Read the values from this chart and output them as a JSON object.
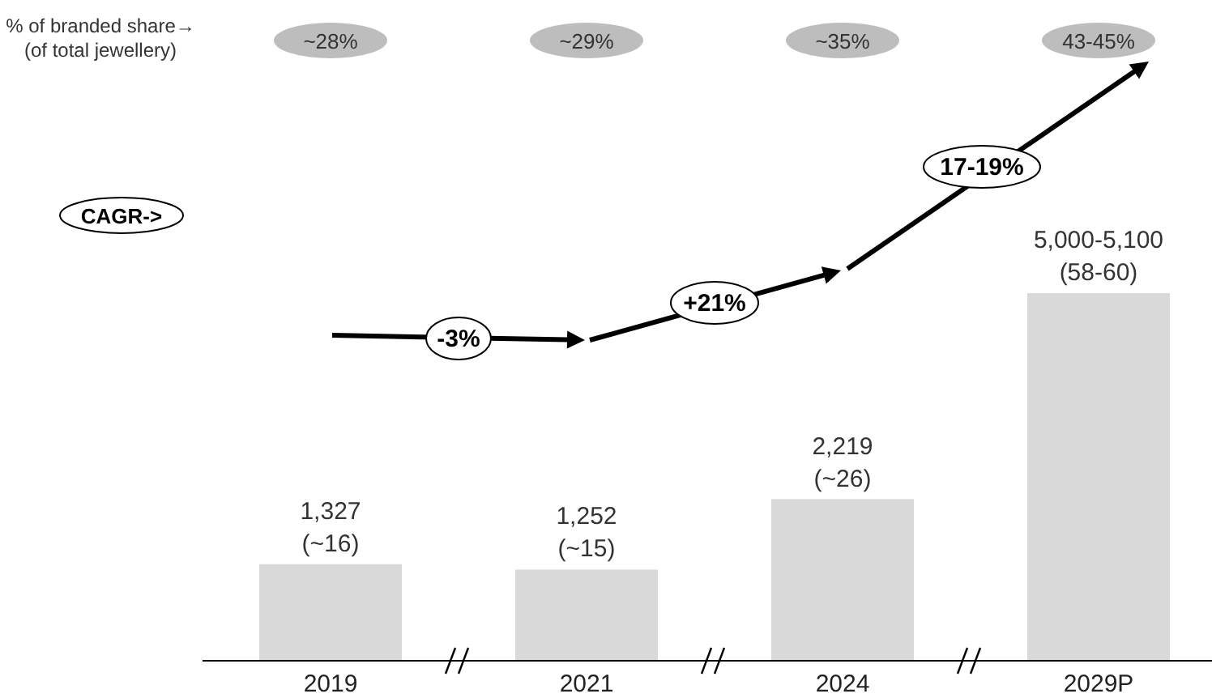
{
  "chart_data": {
    "type": "bar",
    "categories": [
      "2019",
      "2021",
      "2024",
      "2029P"
    ],
    "values": [
      1327,
      1252,
      2219,
      5050
    ],
    "color": "#d9d9d9",
    "value_labels": [
      "1,327\n(~16)",
      "1,252\n(~15)",
      "2,219\n(~26)",
      "5,000-5,100\n(58-60)"
    ],
    "annotations": [
      "% of branded share→",
      "(of total jewellery)",
      "~28%",
      "~29%",
      "~35%",
      "43-45%",
      "CAGR->",
      "-3%",
      "+21%",
      "17-19%"
    ]
  }
}
